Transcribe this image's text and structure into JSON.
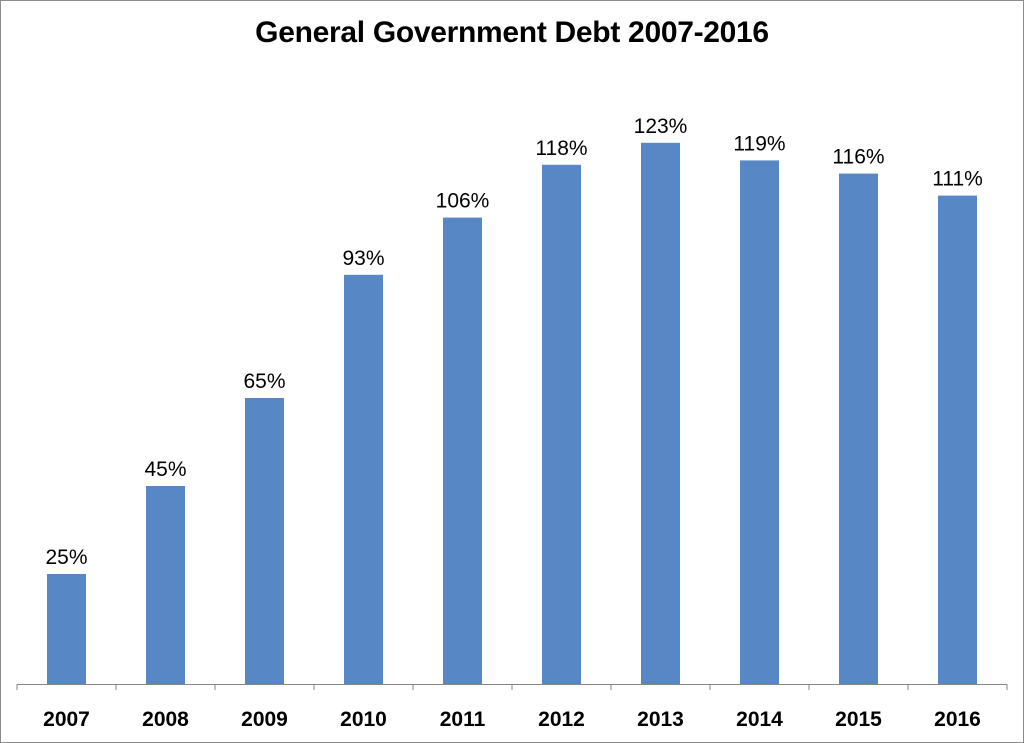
{
  "chart_data": {
    "type": "bar",
    "title": "General Government Debt 2007-2016",
    "xlabel": "",
    "ylabel": "",
    "categories": [
      "2007",
      "2008",
      "2009",
      "2010",
      "2011",
      "2012",
      "2013",
      "2014",
      "2015",
      "2016"
    ],
    "values": [
      25,
      45,
      65,
      93,
      106,
      118,
      123,
      119,
      116,
      111
    ],
    "data_labels": [
      "25%",
      "45%",
      "65%",
      "93%",
      "106%",
      "118%",
      "123%",
      "119%",
      "116%",
      "111%"
    ],
    "ylim": [
      0,
      140
    ],
    "grid": false,
    "legend": "none",
    "bar_color": "#5787c4"
  }
}
